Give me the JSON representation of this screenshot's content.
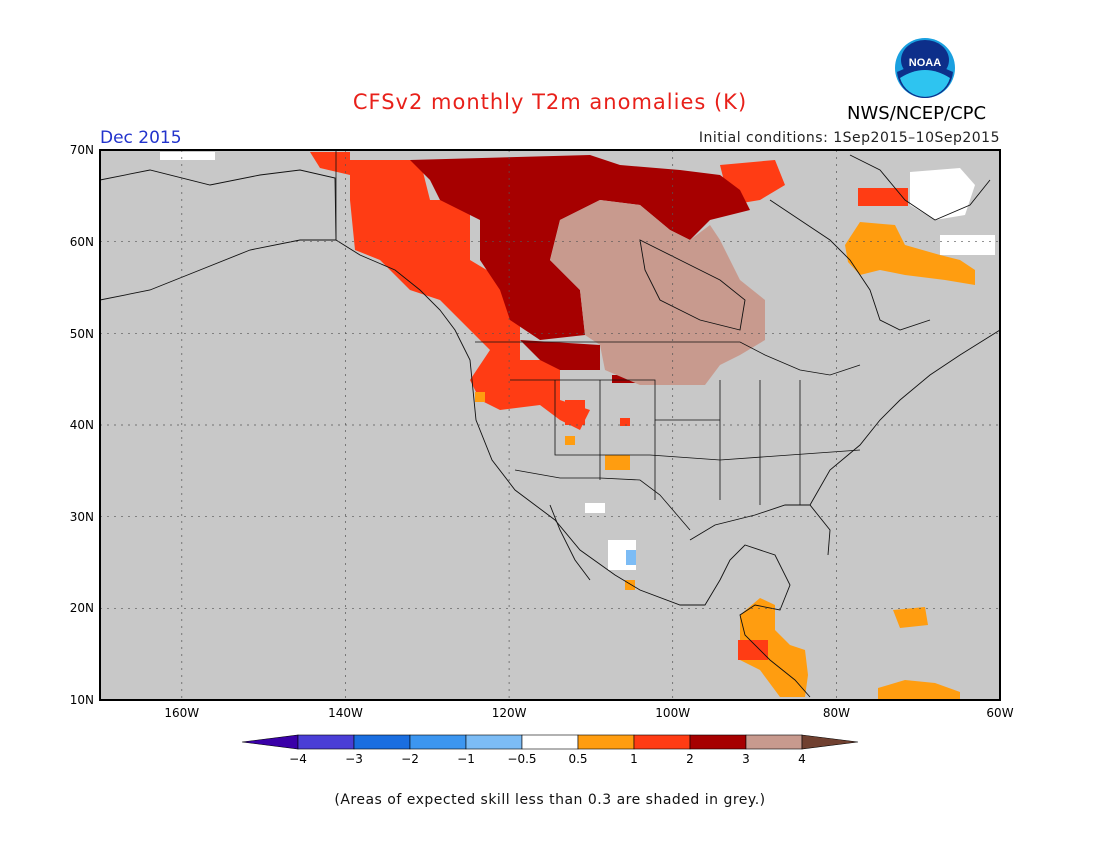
{
  "header": {
    "title": "CFSv2 monthly T2m anomalies (K)",
    "org": "NWS/NCEP/CPC",
    "logo_text": "NOAA",
    "period": "Dec 2015",
    "initial_conditions": "Initial conditions: 1Sep2015–10Sep2015"
  },
  "map": {
    "region": "North America",
    "lat_range": [
      10,
      70
    ],
    "lon_range": [
      -170,
      -60
    ],
    "lat_labels": [
      "70N",
      "60N",
      "50N",
      "40N",
      "30N",
      "20N",
      "10N"
    ],
    "lon_labels": [
      "160W",
      "140W",
      "120W",
      "100W",
      "80W",
      "60W"
    ],
    "background": "#c8c8c8",
    "anomaly_regions": [
      {
        "name": "Western Canada / Alaska Panhandle",
        "category": "1 to 2",
        "color": "#ff3c14"
      },
      {
        "name": "Northern Canada",
        "category": "2 to 3",
        "color": "#a60000"
      },
      {
        "name": "Central Canada / Northern Plains",
        "category": "3 to 4",
        "color": "#c89a8e"
      },
      {
        "name": "Labrador Sea / Greenland coast",
        "category": "0.5 to 1",
        "color": "#ff9d10"
      },
      {
        "name": "Central America",
        "category": "0.5 to 1",
        "color": "#ff9d10"
      }
    ]
  },
  "legend": {
    "labels": [
      "−4",
      "−3",
      "−2",
      "−1",
      "−0.5",
      "0.5",
      "1",
      "2",
      "3",
      "4"
    ],
    "colors": [
      "#3a00a8",
      "#4a3ed6",
      "#1a6ee0",
      "#3c96f0",
      "#7cbcf5",
      "#ffffff",
      "#ff9d10",
      "#ff3c14",
      "#a60000",
      "#c89a8e",
      "#704030"
    ]
  },
  "footnote": "(Areas of expected skill less than 0.3 are shaded in grey.)"
}
